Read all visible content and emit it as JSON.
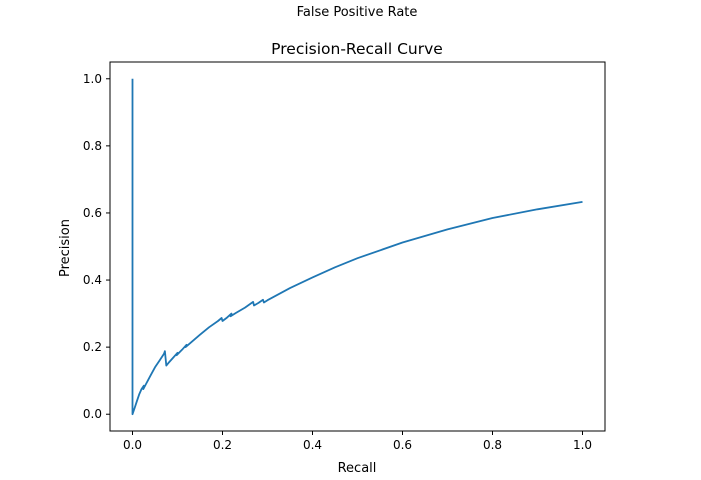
{
  "figure": {
    "suptitle": "False Positive Rate"
  },
  "chart_data": {
    "type": "line",
    "title": "Precision-Recall Curve",
    "xlabel": "Recall",
    "ylabel": "Precision",
    "xlim": [
      -0.05,
      1.05
    ],
    "ylim": [
      -0.05,
      1.05
    ],
    "grid": false,
    "xticks": [
      0.0,
      0.2,
      0.4,
      0.6,
      0.8,
      1.0
    ],
    "xtick_labels": [
      "0.0",
      "0.2",
      "0.4",
      "0.6",
      "0.8",
      "1.0"
    ],
    "yticks": [
      0.0,
      0.2,
      0.4,
      0.6,
      0.8,
      1.0
    ],
    "ytick_labels": [
      "0.0",
      "0.2",
      "0.4",
      "0.6",
      "0.8",
      "1.0"
    ],
    "series": [
      {
        "color": "#1f77b4",
        "x": [
          0.0,
          0.0,
          0.005,
          0.01,
          0.015,
          0.02,
          0.025,
          0.024,
          0.03,
          0.04,
          0.05,
          0.06,
          0.07,
          0.072,
          0.075,
          0.08,
          0.09,
          0.1,
          0.098,
          0.11,
          0.12,
          0.118,
          0.13,
          0.15,
          0.17,
          0.19,
          0.198,
          0.2,
          0.21,
          0.22,
          0.218,
          0.23,
          0.25,
          0.268,
          0.27,
          0.28,
          0.29,
          0.292,
          0.3,
          0.35,
          0.4,
          0.45,
          0.5,
          0.6,
          0.7,
          0.8,
          0.9,
          1.0
        ],
        "y": [
          1.0,
          0.0,
          0.02,
          0.04,
          0.06,
          0.075,
          0.085,
          0.075,
          0.09,
          0.115,
          0.14,
          0.16,
          0.18,
          0.188,
          0.145,
          0.153,
          0.168,
          0.183,
          0.176,
          0.192,
          0.207,
          0.2,
          0.214,
          0.237,
          0.259,
          0.278,
          0.287,
          0.278,
          0.288,
          0.3,
          0.292,
          0.302,
          0.318,
          0.335,
          0.324,
          0.332,
          0.341,
          0.333,
          0.34,
          0.376,
          0.408,
          0.438,
          0.465,
          0.512,
          0.551,
          0.585,
          0.611,
          0.633
        ]
      }
    ]
  }
}
